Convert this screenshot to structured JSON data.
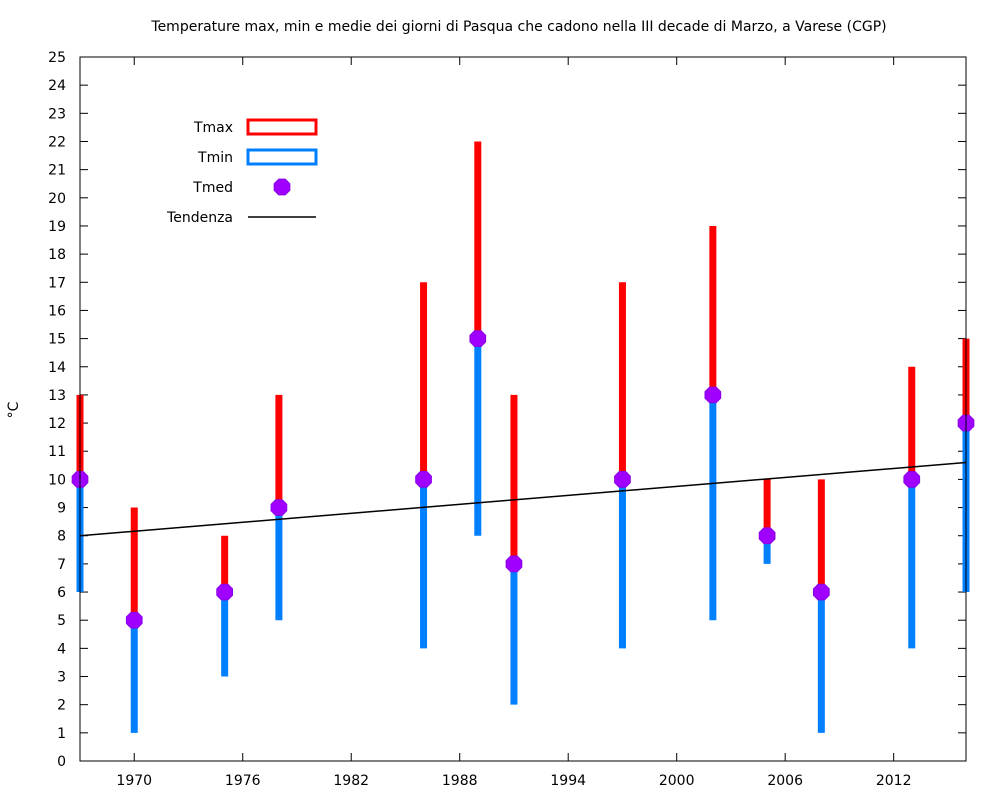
{
  "chart_data": {
    "type": "bar",
    "title": "Temperature max, min e medie dei giorni di Pasqua che cadono nella III decade di Marzo, a Varese (CGP)",
    "ylabel": "°C",
    "xlabel": "",
    "xlim": [
      1967,
      2016
    ],
    "ylim": [
      0,
      25
    ],
    "x_ticks": [
      "1970",
      "1976",
      "1982",
      "1988",
      "1994",
      "2000",
      "2006",
      "2012"
    ],
    "y_ticks": [
      "0",
      "1",
      "2",
      "3",
      "4",
      "5",
      "6",
      "7",
      "8",
      "9",
      "10",
      "11",
      "12",
      "13",
      "14",
      "15",
      "16",
      "17",
      "18",
      "19",
      "20",
      "21",
      "22",
      "23",
      "24",
      "25"
    ],
    "grid": false,
    "legend_position": "top-left",
    "years": [
      1967,
      1970,
      1975,
      1978,
      1986,
      1989,
      1991,
      1997,
      2002,
      2005,
      2008,
      2013,
      2016
    ],
    "series": [
      {
        "name": "Tmax",
        "color": "#ff0000",
        "values": [
          13,
          9,
          8,
          13,
          17,
          22,
          13,
          17,
          19,
          10,
          10,
          14,
          15
        ]
      },
      {
        "name": "Tmin",
        "color": "#0080ff",
        "values": [
          6,
          1,
          3,
          5,
          4,
          8,
          2,
          4,
          5,
          7,
          1,
          4,
          6
        ]
      },
      {
        "name": "Tmed",
        "color": "#a000ff",
        "values": [
          10,
          5,
          6,
          9,
          10,
          15,
          7,
          10,
          13,
          8,
          6,
          10,
          12
        ]
      }
    ],
    "trend": {
      "name": "Tendenza",
      "color": "#000000",
      "start": [
        1967,
        8.0
      ],
      "end": [
        2016,
        10.6
      ]
    }
  }
}
